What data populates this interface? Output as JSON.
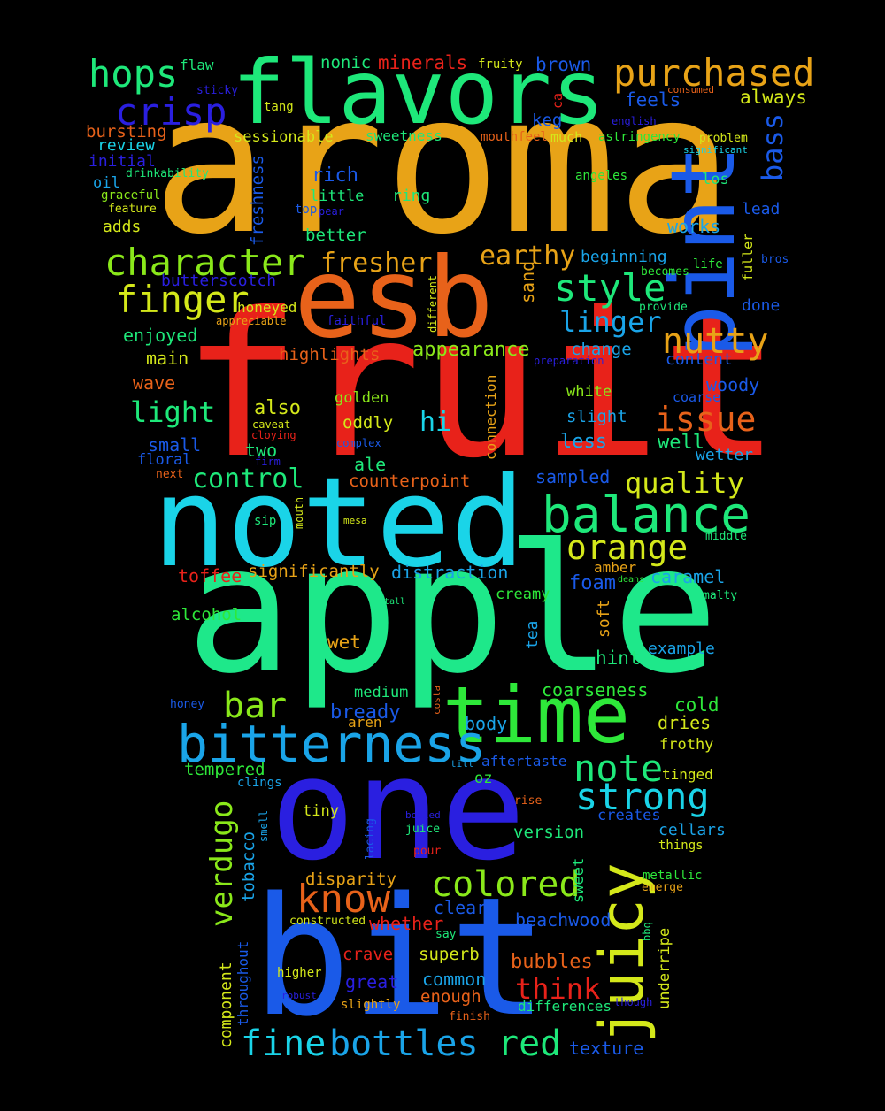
{
  "wordcloud": {
    "words": [
      {
        "text": "aroma",
        "color": "#e8a317"
      },
      {
        "text": "fruit",
        "color": "#e8221a"
      },
      {
        "text": "apple",
        "color": "#1ee88a"
      },
      {
        "text": "one",
        "color": "#2a1fe0"
      },
      {
        "text": "bit",
        "color": "#1a5ae8"
      },
      {
        "text": "noted",
        "color": "#1ad4e8"
      },
      {
        "text": "esb",
        "color": "#e8621a"
      },
      {
        "text": "flavors",
        "color": "#1ee87a"
      },
      {
        "text": "pint",
        "color": "#1a5ae8"
      },
      {
        "text": "time",
        "color": "#2ee83a"
      },
      {
        "text": "juicy",
        "color": "#d4e81a"
      },
      {
        "text": "bitterness",
        "color": "#1aa4e8"
      },
      {
        "text": "balance",
        "color": "#1ee87a"
      },
      {
        "text": "purchased",
        "color": "#e8a317"
      },
      {
        "text": "character",
        "color": "#8ae81a"
      },
      {
        "text": "know",
        "color": "#e8621a"
      },
      {
        "text": "colored",
        "color": "#8ae81a"
      },
      {
        "text": "finger",
        "color": "#d4e81a"
      },
      {
        "text": "hops",
        "color": "#1ee87a"
      },
      {
        "text": "crisp",
        "color": "#2a1fe0"
      },
      {
        "text": "style",
        "color": "#1ee87a"
      },
      {
        "text": "nutty",
        "color": "#e8a317"
      },
      {
        "text": "note",
        "color": "#1ee87a"
      },
      {
        "text": "strong",
        "color": "#1ad4e8"
      },
      {
        "text": "orange",
        "color": "#d4e81a"
      },
      {
        "text": "verdugo",
        "color": "#8ae81a"
      },
      {
        "text": "issue",
        "color": "#e8621a"
      },
      {
        "text": "quality",
        "color": "#d4e81a"
      },
      {
        "text": "bottles",
        "color": "#1aa4e8"
      },
      {
        "text": "fine",
        "color": "#1ad4e8"
      },
      {
        "text": "red",
        "color": "#1ee87a"
      },
      {
        "text": "bar",
        "color": "#8ae81a"
      },
      {
        "text": "light",
        "color": "#1ee87a"
      },
      {
        "text": "fresher",
        "color": "#e8a317"
      },
      {
        "text": "earthy",
        "color": "#e8a317"
      },
      {
        "text": "linger",
        "color": "#1aa4e8"
      },
      {
        "text": "bass",
        "color": "#1a5ae8"
      },
      {
        "text": "control",
        "color": "#1ee87a"
      },
      {
        "text": "think",
        "color": "#e8221a"
      },
      {
        "text": "hi",
        "color": "#1ad4e8"
      },
      {
        "text": "rich",
        "color": "#1a5ae8"
      },
      {
        "text": "appearance",
        "color": "#8ae81a"
      },
      {
        "text": "minerals",
        "color": "#e8221a"
      },
      {
        "text": "nonic",
        "color": "#1ee87a"
      },
      {
        "text": "flaw",
        "color": "#1ee87a"
      },
      {
        "text": "brown",
        "color": "#1a5ae8"
      },
      {
        "text": "always",
        "color": "#d4e81a"
      },
      {
        "text": "feels",
        "color": "#1a5ae8"
      },
      {
        "text": "keg",
        "color": "#1a5ae8"
      },
      {
        "text": "ca",
        "color": "#e8221a"
      },
      {
        "text": "fruity",
        "color": "#d4e81a"
      },
      {
        "text": "sticky",
        "color": "#2a1fe0"
      },
      {
        "text": "tang",
        "color": "#d4e81a"
      },
      {
        "text": "bursting",
        "color": "#e8621a"
      },
      {
        "text": "review",
        "color": "#1ad4e8"
      },
      {
        "text": "initial",
        "color": "#2a1fe0"
      },
      {
        "text": "oil",
        "color": "#1aa4e8"
      },
      {
        "text": "drinkability",
        "color": "#1ee87a"
      },
      {
        "text": "graceful",
        "color": "#8ae81a"
      },
      {
        "text": "feature",
        "color": "#d4e81a"
      },
      {
        "text": "adds",
        "color": "#d4e81a"
      },
      {
        "text": "sessionable",
        "color": "#d4e81a"
      },
      {
        "text": "sweetness",
        "color": "#1ee87a"
      },
      {
        "text": "mouthfeel",
        "color": "#e8621a"
      },
      {
        "text": "much",
        "color": "#d4e81a"
      },
      {
        "text": "astringency",
        "color": "#2ee83a"
      },
      {
        "text": "english",
        "color": "#2a1fe0"
      },
      {
        "text": "consumed",
        "color": "#e8621a"
      },
      {
        "text": "problem",
        "color": "#d4e81a"
      },
      {
        "text": "significant",
        "color": "#1ad4e8"
      },
      {
        "text": "angeles",
        "color": "#2ee83a"
      },
      {
        "text": "los",
        "color": "#1ee87a"
      },
      {
        "text": "lead",
        "color": "#1a5ae8"
      },
      {
        "text": "works",
        "color": "#1aa4e8"
      },
      {
        "text": "freshness",
        "color": "#1a5ae8"
      },
      {
        "text": "little",
        "color": "#1ee87a"
      },
      {
        "text": "ring",
        "color": "#1ee87a"
      },
      {
        "text": "top",
        "color": "#1a5ae8"
      },
      {
        "text": "pear",
        "color": "#2a1fe0"
      },
      {
        "text": "better",
        "color": "#1ee87a"
      },
      {
        "text": "beginning",
        "color": "#1aa4e8"
      },
      {
        "text": "life",
        "color": "#2ee83a"
      },
      {
        "text": "fuller",
        "color": "#d4e81a"
      },
      {
        "text": "bros",
        "color": "#1a5ae8"
      },
      {
        "text": "becomes",
        "color": "#2ee83a"
      },
      {
        "text": "butterscotch",
        "color": "#2a1fe0"
      },
      {
        "text": "different",
        "color": "#d4e81a"
      },
      {
        "text": "sand",
        "color": "#e8a317"
      },
      {
        "text": "provide",
        "color": "#1ee87a"
      },
      {
        "text": "done",
        "color": "#1a5ae8"
      },
      {
        "text": "honeyed",
        "color": "#d4e81a"
      },
      {
        "text": "appreciable",
        "color": "#e8a317"
      },
      {
        "text": "faithful",
        "color": "#2a1fe0"
      },
      {
        "text": "enjoyed",
        "color": "#1ee87a"
      },
      {
        "text": "main",
        "color": "#d4e81a"
      },
      {
        "text": "highlights",
        "color": "#e8621a"
      },
      {
        "text": "change",
        "color": "#1aa4e8"
      },
      {
        "text": "preparation",
        "color": "#2a1fe0"
      },
      {
        "text": "content",
        "color": "#1a5ae8"
      },
      {
        "text": "wave",
        "color": "#e8621a"
      },
      {
        "text": "woody",
        "color": "#1a5ae8"
      },
      {
        "text": "white",
        "color": "#8ae81a"
      },
      {
        "text": "coarse",
        "color": "#1a5ae8"
      },
      {
        "text": "golden",
        "color": "#8ae81a"
      },
      {
        "text": "also",
        "color": "#d4e81a"
      },
      {
        "text": "connection",
        "color": "#e8a317"
      },
      {
        "text": "slight",
        "color": "#1aa4e8"
      },
      {
        "text": "oddly",
        "color": "#d4e81a"
      },
      {
        "text": "caveat",
        "color": "#d4e81a"
      },
      {
        "text": "cloying",
        "color": "#e8221a"
      },
      {
        "text": "small",
        "color": "#1a5ae8"
      },
      {
        "text": "floral",
        "color": "#1a5ae8"
      },
      {
        "text": "two",
        "color": "#1ee87a"
      },
      {
        "text": "firm",
        "color": "#2a1fe0"
      },
      {
        "text": "complex",
        "color": "#1a5ae8"
      },
      {
        "text": "less",
        "color": "#1aa4e8"
      },
      {
        "text": "well",
        "color": "#1ee87a"
      },
      {
        "text": "wetter",
        "color": "#1aa4e8"
      },
      {
        "text": "ale",
        "color": "#1ee87a"
      },
      {
        "text": "next",
        "color": "#e8621a"
      },
      {
        "text": "counterpoint",
        "color": "#e8621a"
      },
      {
        "text": "sampled",
        "color": "#1a5ae8"
      },
      {
        "text": "mouth",
        "color": "#d4e81a"
      },
      {
        "text": "sip",
        "color": "#1ee87a"
      },
      {
        "text": "mesa",
        "color": "#d4e81a"
      },
      {
        "text": "middle",
        "color": "#1ee87a"
      },
      {
        "text": "toffee",
        "color": "#e8221a"
      },
      {
        "text": "significantly",
        "color": "#e8a317"
      },
      {
        "text": "distraction",
        "color": "#1aa4e8"
      },
      {
        "text": "amber",
        "color": "#e8a317"
      },
      {
        "text": "foam",
        "color": "#1a5ae8"
      },
      {
        "text": "deans",
        "color": "#2ee83a"
      },
      {
        "text": "caramel",
        "color": "#1aa4e8"
      },
      {
        "text": "malty",
        "color": "#1ee87a"
      },
      {
        "text": "creamy",
        "color": "#2ee83a"
      },
      {
        "text": "alcohol",
        "color": "#2ee83a"
      },
      {
        "text": "tall",
        "color": "#1ee87a"
      },
      {
        "text": "soft",
        "color": "#e8a317"
      },
      {
        "text": "tea",
        "color": "#1aa4e8"
      },
      {
        "text": "wet",
        "color": "#e8a317"
      },
      {
        "text": "hint",
        "color": "#1ee87a"
      },
      {
        "text": "example",
        "color": "#1aa4e8"
      },
      {
        "text": "coarseness",
        "color": "#2ee83a"
      },
      {
        "text": "medium",
        "color": "#1ee87a"
      },
      {
        "text": "costa",
        "color": "#e8621a"
      },
      {
        "text": "honey",
        "color": "#1a5ae8"
      },
      {
        "text": "bready",
        "color": "#1a5ae8"
      },
      {
        "text": "cold",
        "color": "#2ee83a"
      },
      {
        "text": "dries",
        "color": "#d4e81a"
      },
      {
        "text": "aren",
        "color": "#e8a317"
      },
      {
        "text": "body",
        "color": "#1aa4e8"
      },
      {
        "text": "frothy",
        "color": "#d4e81a"
      },
      {
        "text": "tilt",
        "color": "#1aa4e8"
      },
      {
        "text": "aftertaste",
        "color": "#1a5ae8"
      },
      {
        "text": "tempered",
        "color": "#2ee83a"
      },
      {
        "text": "tinged",
        "color": "#d4e81a"
      },
      {
        "text": "clings",
        "color": "#1aa4e8"
      },
      {
        "text": "oz",
        "color": "#2ee83a"
      },
      {
        "text": "creates",
        "color": "#1a5ae8"
      },
      {
        "text": "tiny",
        "color": "#d4e81a"
      },
      {
        "text": "bodied",
        "color": "#2a1fe0"
      },
      {
        "text": "rise",
        "color": "#e8621a"
      },
      {
        "text": "juice",
        "color": "#1ee87a"
      },
      {
        "text": "smell",
        "color": "#1aa4e8"
      },
      {
        "text": "lacing",
        "color": "#1a5ae8"
      },
      {
        "text": "version",
        "color": "#1ee87a"
      },
      {
        "text": "cellars",
        "color": "#1aa4e8"
      },
      {
        "text": "tobacco",
        "color": "#1aa4e8"
      },
      {
        "text": "pour",
        "color": "#e8221a"
      },
      {
        "text": "things",
        "color": "#d4e81a"
      },
      {
        "text": "sweet",
        "color": "#1ee87a"
      },
      {
        "text": "disparity",
        "color": "#e8a317"
      },
      {
        "text": "metallic",
        "color": "#2ee83a"
      },
      {
        "text": "emerge",
        "color": "#e8a317"
      },
      {
        "text": "clear",
        "color": "#1a5ae8"
      },
      {
        "text": "constructed",
        "color": "#d4e81a"
      },
      {
        "text": "whether",
        "color": "#e8221a"
      },
      {
        "text": "beachwood",
        "color": "#1a5ae8"
      },
      {
        "text": "say",
        "color": "#1ee87a"
      },
      {
        "text": "crave",
        "color": "#e8221a"
      },
      {
        "text": "superb",
        "color": "#d4e81a"
      },
      {
        "text": "bubbles",
        "color": "#e8621a"
      },
      {
        "text": "underripe",
        "color": "#d4e81a"
      },
      {
        "text": "bbq",
        "color": "#1ee87a"
      },
      {
        "text": "component",
        "color": "#d4e81a"
      },
      {
        "text": "throughout",
        "color": "#1a5ae8"
      },
      {
        "text": "higher",
        "color": "#d4e81a"
      },
      {
        "text": "great",
        "color": "#2a1fe0"
      },
      {
        "text": "common",
        "color": "#1aa4e8"
      },
      {
        "text": "robust",
        "color": "#2a1fe0"
      },
      {
        "text": "slightly",
        "color": "#e8a317"
      },
      {
        "text": "enough",
        "color": "#e8621a"
      },
      {
        "text": "differences",
        "color": "#1ee87a"
      },
      {
        "text": "though",
        "color": "#2a1fe0"
      },
      {
        "text": "finish",
        "color": "#e8621a"
      },
      {
        "text": "texture",
        "color": "#1a5ae8"
      }
    ]
  }
}
